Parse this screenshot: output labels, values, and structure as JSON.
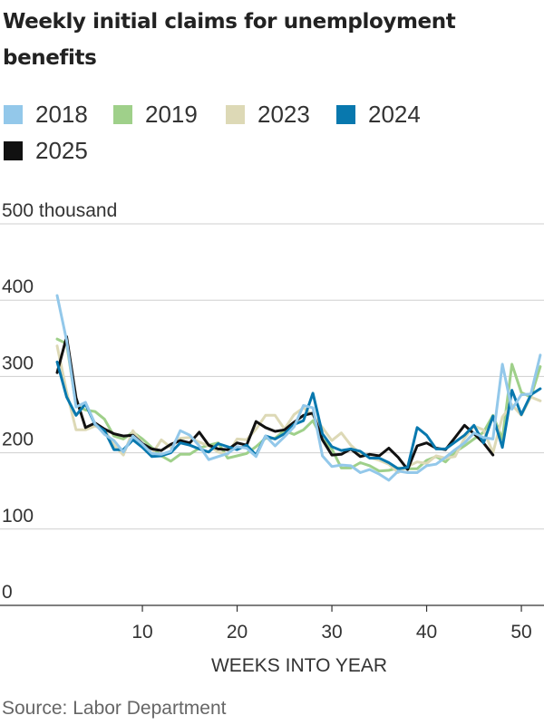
{
  "title": "Weekly initial claims for unemployment benefits",
  "source": "Source: Labor Department",
  "colors": {
    "2018": "#93c8ea",
    "2019": "#9fd08a",
    "2023": "#ddd9b6",
    "2024": "#0878ae",
    "2025": "#111111"
  },
  "chart_data": {
    "type": "line",
    "title": "Weekly initial claims for unemployment benefits",
    "xlabel": "WEEKS INTO YEAR",
    "ylabel": "",
    "xlim": [
      0,
      52
    ],
    "ylim": [
      0,
      500
    ],
    "x_ticks": [
      10,
      20,
      30,
      40,
      50
    ],
    "y_ticks": [
      {
        "value": 0,
        "label": "0"
      },
      {
        "value": 100,
        "label": "100"
      },
      {
        "value": 200,
        "label": "200"
      },
      {
        "value": 300,
        "label": "300"
      },
      {
        "value": 400,
        "label": "400"
      },
      {
        "value": 500,
        "label": "500 thousand"
      }
    ],
    "grid": true,
    "legend_position": "top",
    "series": [
      {
        "name": "2018",
        "color": "#93c8ea",
        "x_start": 1,
        "values": [
          406,
          347,
          260,
          266,
          238,
          224,
          216,
          201,
          222,
          211,
          199,
          198,
          202,
          229,
          223,
          209,
          191,
          195,
          199,
          208,
          206,
          195,
          222,
          209,
          221,
          234,
          262,
          259,
          196,
          182,
          184,
          183,
          174,
          178,
          172,
          164,
          176,
          174,
          174,
          183,
          185,
          194,
          204,
          213,
          226,
          220,
          218,
          316,
          257,
          276,
          277,
          328
        ]
      },
      {
        "name": "2019",
        "color": "#9fd08a",
        "x_start": 1,
        "values": [
          349,
          343,
          262,
          256,
          254,
          244,
          222,
          218,
          227,
          218,
          207,
          196,
          189,
          198,
          198,
          206,
          210,
          213,
          193,
          196,
          199,
          208,
          219,
          219,
          229,
          224,
          230,
          242,
          218,
          205,
          180,
          180,
          187,
          183,
          176,
          177,
          180,
          179,
          179,
          190,
          195,
          188,
          201,
          209,
          218,
          227,
          249,
          218,
          316,
          279,
          273,
          313
        ]
      },
      {
        "name": "2023",
        "color": "#ddd9b6",
        "x_start": 1,
        "values": [
          340,
          280,
          230,
          230,
          235,
          230,
          210,
          197,
          229,
          211,
          198,
          217,
          207,
          219,
          220,
          214,
          209,
          201,
          198,
          218,
          217,
          231,
          249,
          249,
          231,
          250,
          259,
          249,
          233,
          216,
          226,
          210,
          199,
          194,
          190,
          185,
          174,
          182,
          188,
          186,
          196,
          193,
          195,
          219,
          235,
          230,
          200,
          247,
          263,
          249,
          273,
          268
        ]
      },
      {
        "name": "2024",
        "color": "#0878ae",
        "x_start": 1,
        "values": [
          319,
          273,
          249,
          264,
          237,
          229,
          204,
          204,
          217,
          207,
          195,
          196,
          200,
          213,
          210,
          205,
          201,
          212,
          208,
          204,
          210,
          197,
          222,
          218,
          225,
          237,
          242,
          278,
          225,
          208,
          203,
          205,
          202,
          193,
          193,
          187,
          179,
          181,
          233,
          223,
          205,
          205,
          214,
          223,
          236,
          213,
          248,
          207,
          282,
          250,
          276,
          284
        ]
      },
      {
        "name": "2025",
        "color": "#111111",
        "x_start": 1,
        "values": [
          305,
          352,
          272,
          233,
          239,
          231,
          225,
          222,
          223,
          212,
          205,
          203,
          211,
          216,
          213,
          227,
          210,
          205,
          204,
          213,
          210,
          241,
          233,
          228,
          230,
          240,
          249,
          252,
          217,
          197,
          198,
          205,
          195,
          198,
          196,
          206,
          194,
          178,
          209,
          213,
          206,
          204,
          220,
          236,
          225,
          213,
          197
        ]
      }
    ]
  }
}
